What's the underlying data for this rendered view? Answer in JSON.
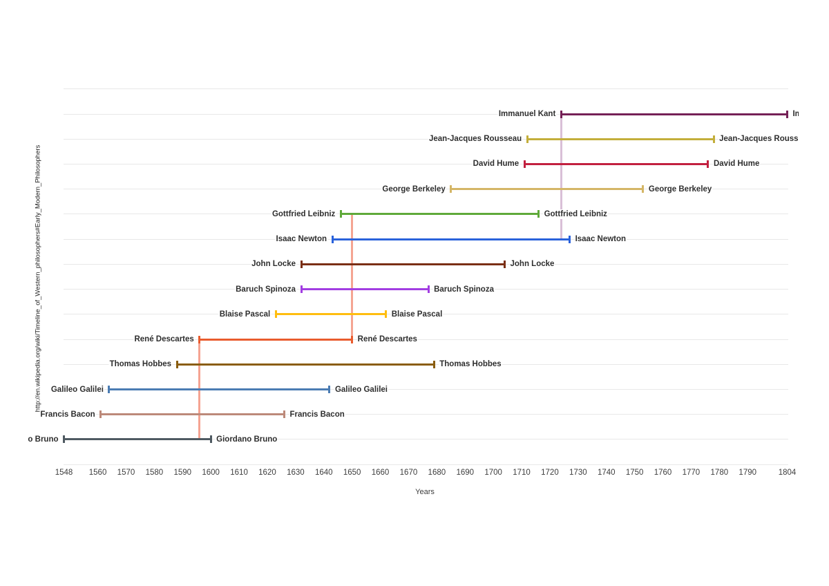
{
  "chart_data": {
    "type": "timeline",
    "title": "",
    "xlabel": "Years",
    "ylabel": "http://en.wikipedia.org/wiki/Timeline_of_Western_philosophers#Early_Modern_Philosophers",
    "x_range": [
      1548,
      1804
    ],
    "x_ticks": [
      1548,
      1560,
      1570,
      1580,
      1590,
      1600,
      1610,
      1620,
      1630,
      1640,
      1650,
      1660,
      1670,
      1680,
      1690,
      1700,
      1710,
      1720,
      1730,
      1740,
      1750,
      1760,
      1770,
      1780,
      1790,
      1804
    ],
    "grid": "horizontal",
    "legend": "none",
    "series": [
      {
        "name": "Immanuel Kant",
        "birth": 1724,
        "death": 1804,
        "color": "#752056"
      },
      {
        "name": "Jean-Jacques Rousseau",
        "birth": 1712,
        "death": 1778,
        "color": "#c3ae3b"
      },
      {
        "name": "David Hume",
        "birth": 1711,
        "death": 1776,
        "color": "#c2203f"
      },
      {
        "name": "George Berkeley",
        "birth": 1685,
        "death": 1753,
        "color": "#d4b666"
      },
      {
        "name": "Gottfried Leibniz",
        "birth": 1646,
        "death": 1716,
        "color": "#5fa93a"
      },
      {
        "name": "Isaac Newton",
        "birth": 1643,
        "death": 1727,
        "color": "#2a62db"
      },
      {
        "name": "John Locke",
        "birth": 1632,
        "death": 1704,
        "color": "#7a2f15"
      },
      {
        "name": "Baruch Spinoza",
        "birth": 1632,
        "death": 1677,
        "color": "#a23de2"
      },
      {
        "name": "Blaise Pascal",
        "birth": 1623,
        "death": 1662,
        "color": "#ffbd0f"
      },
      {
        "name": "René Descartes",
        "birth": 1596,
        "death": 1650,
        "color": "#e95c2e"
      },
      {
        "name": "Thomas Hobbes",
        "birth": 1588,
        "death": 1679,
        "color": "#8a5d0e"
      },
      {
        "name": "Galileo Galilei",
        "birth": 1564,
        "death": 1642,
        "color": "#4b7cb3"
      },
      {
        "name": "Francis Bacon",
        "birth": 1561,
        "death": 1626,
        "color": "#bc8979"
      },
      {
        "name": "Giordano Bruno",
        "birth": 1548,
        "death": 1600,
        "color": "#4f5a62"
      }
    ],
    "annotations": [
      {
        "year": 1724,
        "from": "Immanuel Kant",
        "to": "Isaac Newton",
        "color": "#d9bfd7"
      },
      {
        "year": 1650,
        "from": "Gottfried Leibniz",
        "to": "René Descartes",
        "color": "#f5a492"
      },
      {
        "year": 1596,
        "from": "René Descartes",
        "to": "Giordano Bruno",
        "color": "#f5a492"
      }
    ]
  }
}
